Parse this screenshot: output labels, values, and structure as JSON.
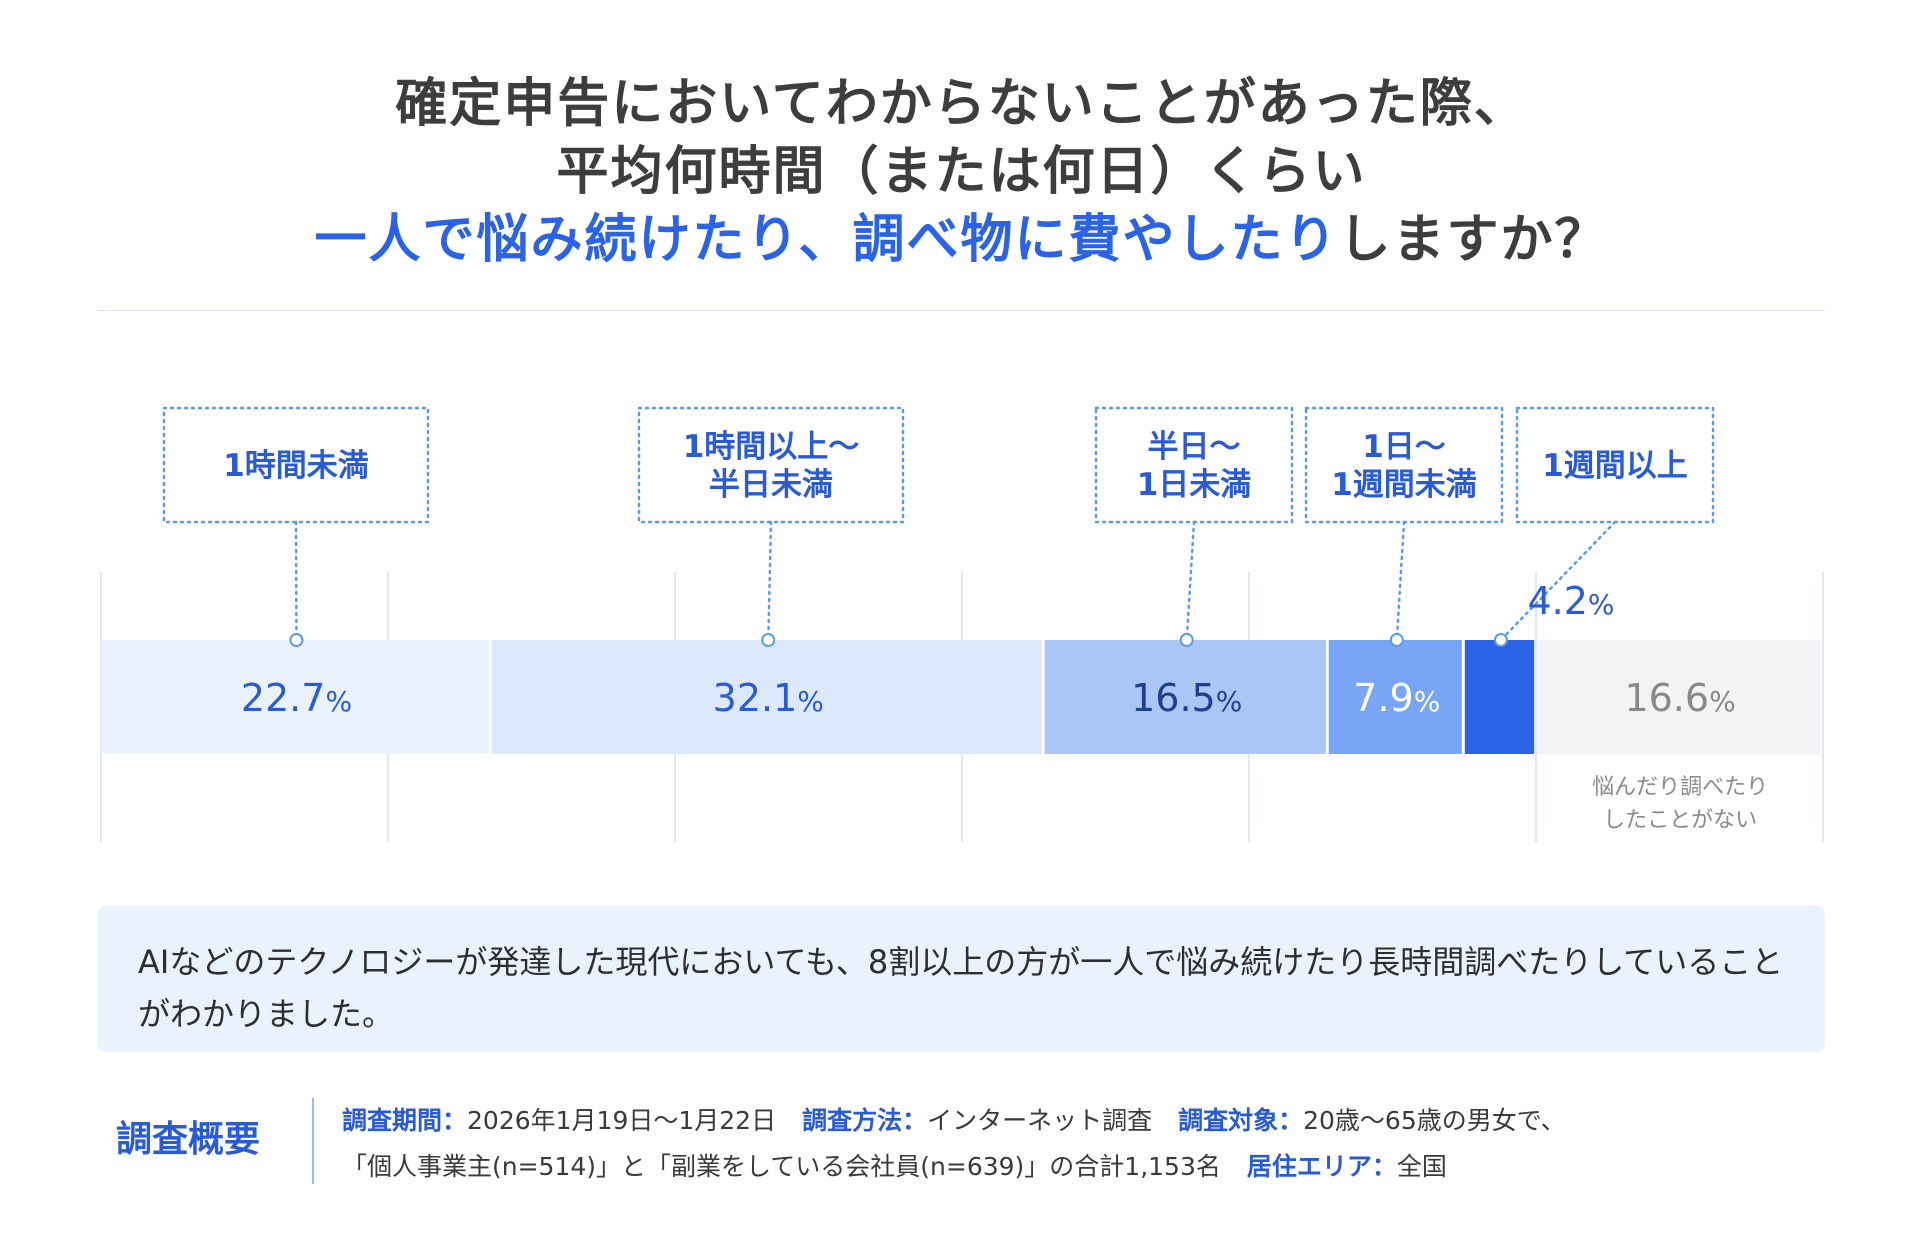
{
  "title": {
    "line1": "確定申告においてわからないことがあった際、",
    "line2": "平均何時間（または何日）くらい",
    "line3_highlight": "一人で悩み続けたり、調べ物に費やしたり",
    "line3_rest": "しますか？"
  },
  "chart_data": {
    "type": "bar",
    "orientation": "horizontal-stacked",
    "unit": "%",
    "segments": [
      {
        "label": "1時間未満",
        "label_lines": [
          "1時間未満"
        ],
        "value": 22.7,
        "value_text": "22.7",
        "color": "#e9f2fd",
        "text_color": "#2a5bd7"
      },
      {
        "label": "1時間以上〜半日未満",
        "label_lines": [
          "1時間以上〜",
          "半日未満"
        ],
        "value": 32.1,
        "value_text": "32.1",
        "color": "#dce8fb",
        "text_color": "#2a5bd7"
      },
      {
        "label": "半日〜1日未満",
        "label_lines": [
          "半日〜",
          "1日未満"
        ],
        "value": 16.5,
        "value_text": "16.5",
        "color": "#a9c6f7",
        "text_color": "#1f3f8f"
      },
      {
        "label": "1日〜1週間未満",
        "label_lines": [
          "1日〜",
          "1週間未満"
        ],
        "value": 7.9,
        "value_text": "7.9",
        "color": "#78a5f5",
        "text_color": "#ffffff"
      },
      {
        "label": "1週間以上",
        "label_lines": [
          "1週間以上"
        ],
        "value": 4.2,
        "value_text": "4.2",
        "color": "#2a63e6",
        "text_color": "#2a5bd7"
      },
      {
        "label": "悩んだり調べたりしたことがない",
        "label_lines": [
          "悩んだり調べたり",
          "したことがない"
        ],
        "value": 16.6,
        "value_text": "16.6",
        "color": "#f3f3f3",
        "text_color": "#888888"
      }
    ],
    "xlim": [
      0,
      100
    ],
    "grid": true,
    "colors": {
      "callout_border": "#5b9ae8",
      "callout_text": "#2a5bd7",
      "grid": "#d4e2f6",
      "muted_text": "#8a8a8a"
    }
  },
  "summary": "AIなどのテクノロジーが発達した現代においても、8割以上の方が一人で悩み続けたり長時間調べたりしていることがわかりました。",
  "survey": {
    "heading": "調査概要",
    "period_label": "調査期間：",
    "period": "2026年1月19日〜1月22日",
    "method_label": "調査方法：",
    "method": "インターネット調査",
    "target_label": "調査対象：",
    "target_line1": "20歳〜65歳の男女で、",
    "target_line2": "「個人事業主(n=514)」と「副業をしている会社員(n=639)」の合計1,153名",
    "area_label": "居住エリア：",
    "area": "全国"
  }
}
